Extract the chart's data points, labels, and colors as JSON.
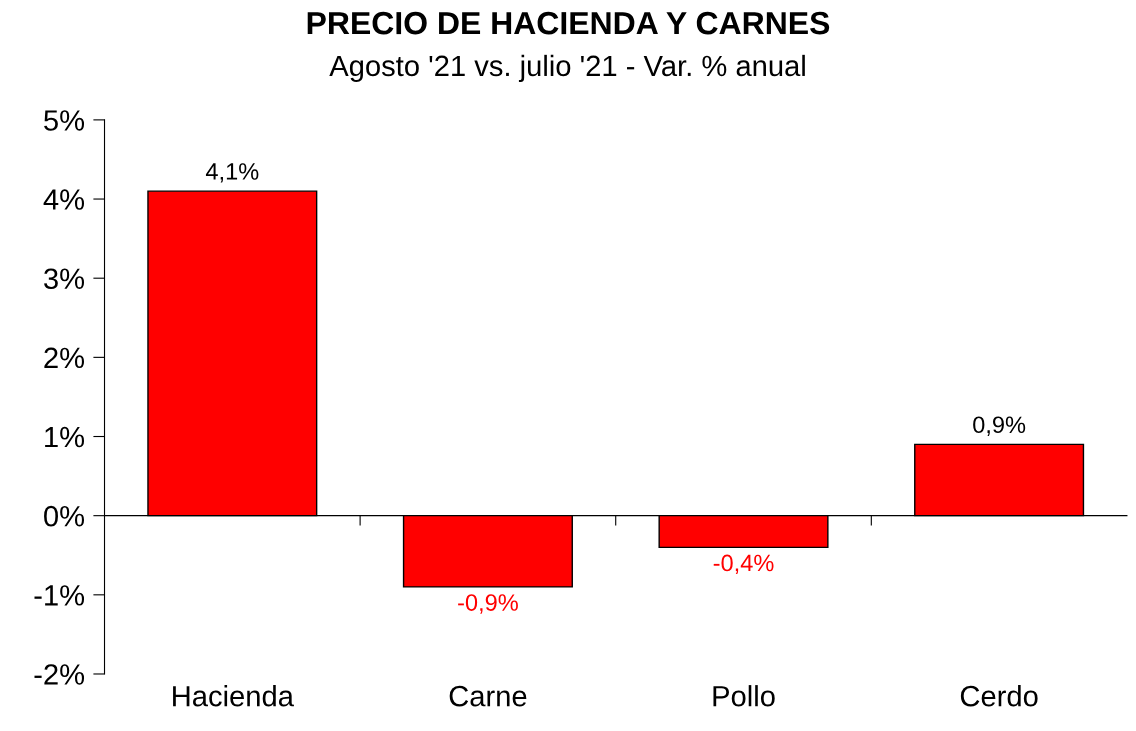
{
  "chart_data": {
    "type": "bar",
    "title": "PRECIO DE HACIENDA Y CARNES",
    "subtitle": "Agosto '21 vs. julio '21 - Var. % anual",
    "categories": [
      "Hacienda",
      "Carne",
      "Pollo",
      "Cerdo"
    ],
    "values": [
      4.1,
      -0.9,
      -0.4,
      0.9
    ],
    "value_labels": [
      "4,1%",
      "-0,9%",
      "-0,4%",
      "0,9%"
    ],
    "color": "#ff0000",
    "ylim": [
      -2,
      5
    ],
    "yticks": [
      {
        "value": 5,
        "label": "5%"
      },
      {
        "value": 4,
        "label": "4%"
      },
      {
        "value": 3,
        "label": "3%"
      },
      {
        "value": 2,
        "label": "2%"
      },
      {
        "value": 1,
        "label": "1%"
      },
      {
        "value": 0,
        "label": "0%"
      },
      {
        "value": -1,
        "label": "-1%"
      },
      {
        "value": -2,
        "label": "-2%"
      }
    ],
    "legend": false
  }
}
